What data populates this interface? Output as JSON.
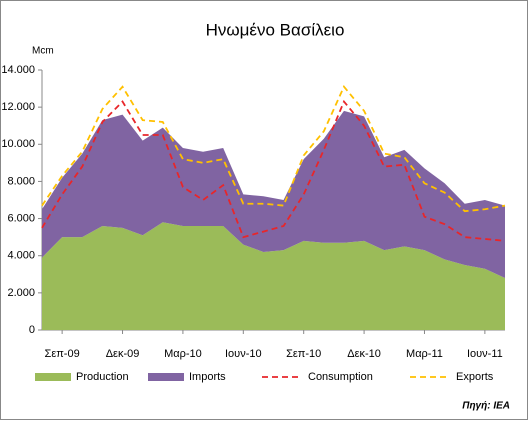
{
  "chart_data": {
    "type": "stacked-area-line",
    "title": "Ηνωμένο Βασίλειο",
    "y_label": "Mcm",
    "source": "Πηγή: IEA",
    "categories": [
      null,
      "Σεπ-09",
      null,
      null,
      "Δεκ-09",
      null,
      null,
      "Μαρ-10",
      null,
      null,
      "Ιουν-10",
      null,
      null,
      "Σεπ-10",
      null,
      null,
      "Δεκ-10",
      null,
      null,
      "Μαρ-11",
      null,
      null,
      "Ιουν-11",
      null
    ],
    "series": [
      {
        "name": "Production",
        "kind": "area",
        "color": "#9bbb59",
        "values": [
          3900,
          5000,
          5000,
          5600,
          5500,
          5100,
          5800,
          5600,
          5600,
          5600,
          4600,
          4200,
          4300,
          4800,
          4700,
          4700,
          4800,
          4300,
          4500,
          4300,
          3800,
          3500,
          3300,
          2800
        ]
      },
      {
        "name": "Imports",
        "kind": "area",
        "color": "#8064a2",
        "values": [
          2600,
          3200,
          4500,
          5700,
          6100,
          5100,
          5100,
          4200,
          4000,
          4200,
          2700,
          3000,
          2700,
          4400,
          5600,
          7100,
          6700,
          5000,
          5200,
          4400,
          4100,
          3300,
          3700,
          3900
        ]
      },
      {
        "name": "Consumption",
        "kind": "line",
        "color": "#e8262a",
        "values": [
          5500,
          7300,
          8800,
          11200,
          12300,
          10500,
          10500,
          7700,
          7000,
          7800,
          5000,
          5300,
          5600,
          7300,
          9700,
          12300,
          11000,
          8800,
          8900,
          6100,
          5700,
          5000,
          4900,
          4800
        ]
      },
      {
        "name": "Exports",
        "kind": "line",
        "color": "#ffc000",
        "values": [
          6700,
          8300,
          9600,
          11900,
          13100,
          11300,
          11200,
          9200,
          9000,
          9200,
          6800,
          6800,
          6700,
          9400,
          10700,
          13100,
          11800,
          9500,
          9300,
          7900,
          7400,
          6400,
          6500,
          6700
        ]
      }
    ],
    "ylim": [
      0,
      14000
    ],
    "yticks": [
      0,
      {
        "value": 2000,
        "label": "2.000"
      },
      {
        "value": 4000,
        "label": "4.000"
      },
      {
        "value": 6000,
        "label": "6.000"
      },
      {
        "value": 8000,
        "label": "8.000"
      },
      {
        "value": 10000,
        "label": "10.000"
      },
      {
        "value": 12000,
        "label": "12.000"
      },
      {
        "value": 14000,
        "label": "14.000"
      }
    ],
    "grid": false,
    "legend": "bottom"
  }
}
